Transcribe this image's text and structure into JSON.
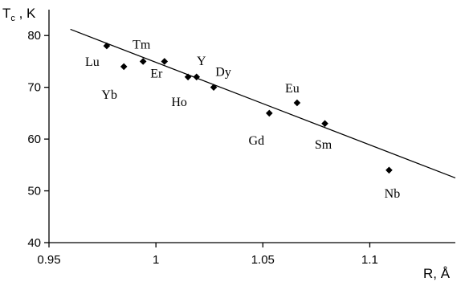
{
  "chart_data": {
    "type": "scatter",
    "title": "",
    "xlabel": "R, Å",
    "ylabel": "T_c, K",
    "xlim": [
      0.95,
      1.14
    ],
    "ylim": [
      40,
      85
    ],
    "x_ticks": [
      "0.95",
      "1",
      "1.05",
      "1.1"
    ],
    "x_tick_values": [
      0.95,
      1.0,
      1.05,
      1.1
    ],
    "y_ticks": [
      "40",
      "50",
      "60",
      "70",
      "80"
    ],
    "y_tick_values": [
      40,
      50,
      60,
      70,
      80
    ],
    "grid": false,
    "points": [
      {
        "label": "Lu",
        "x": 0.977,
        "y": 78
      },
      {
        "label": "Tm",
        "x": 0.994,
        "y": 75
      },
      {
        "label": "Yb",
        "x": 0.985,
        "y": 74
      },
      {
        "label": "Er",
        "x": 1.004,
        "y": 75
      },
      {
        "label": "Ho",
        "x": 1.015,
        "y": 72
      },
      {
        "label": "Y",
        "x": 1.019,
        "y": 72
      },
      {
        "label": "Dy",
        "x": 1.027,
        "y": 70
      },
      {
        "label": "Gd",
        "x": 1.053,
        "y": 65
      },
      {
        "label": "Eu",
        "x": 1.066,
        "y": 67
      },
      {
        "label": "Sm",
        "x": 1.079,
        "y": 63
      },
      {
        "label": "Nb",
        "x": 1.109,
        "y": 54
      }
    ],
    "trendline": {
      "x": [
        0.96,
        1.14
      ],
      "y": [
        81.2,
        52.5
      ]
    }
  }
}
